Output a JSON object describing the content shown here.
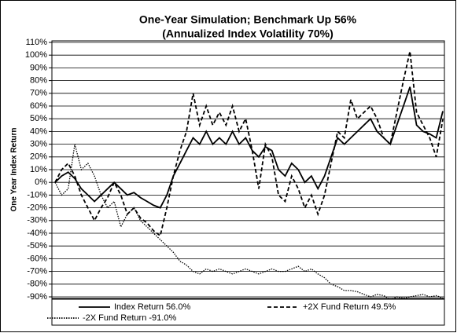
{
  "chart_data": {
    "type": "line",
    "title": [
      "One-Year Simulation; Benchmark Up 56%",
      "(Annualized Index Volatility 70%)"
    ],
    "y_label": "One Year Index Return",
    "ylim": [
      -90,
      110
    ],
    "yticks": [
      {
        "value": -90,
        "label": "-90%"
      },
      {
        "value": -80,
        "label": "-80%"
      },
      {
        "value": -70,
        "label": "-70%"
      },
      {
        "value": -60,
        "label": "-60%"
      },
      {
        "value": -50,
        "label": "-50%"
      },
      {
        "value": -40,
        "label": "-40%"
      },
      {
        "value": -30,
        "label": "-30%"
      },
      {
        "value": -20,
        "label": "-20%"
      },
      {
        "value": -10,
        "label": "-10%"
      },
      {
        "value": 0,
        "label": "0%"
      },
      {
        "value": 10,
        "label": "10%"
      },
      {
        "value": 20,
        "label": "20%"
      },
      {
        "value": 30,
        "label": "30%"
      },
      {
        "value": 40,
        "label": "40%"
      },
      {
        "value": 50,
        "label": "50%"
      },
      {
        "value": 60,
        "label": "60%"
      },
      {
        "value": 70,
        "label": "70%"
      },
      {
        "value": 80,
        "label": "80%"
      },
      {
        "value": 90,
        "label": "90%"
      },
      {
        "value": 100,
        "label": "100%"
      },
      {
        "value": 110,
        "label": "110%"
      }
    ],
    "grid": true,
    "series": [
      {
        "name": "Index Return  56.0%",
        "color": "#000000",
        "dash": "solid",
        "values": [
          0,
          5,
          8,
          3,
          -5,
          -10,
          -15,
          -10,
          -5,
          0,
          -5,
          -10,
          -8,
          -12,
          -15,
          -18,
          -20,
          -10,
          5,
          15,
          25,
          35,
          30,
          40,
          30,
          35,
          30,
          40,
          30,
          35,
          25,
          20,
          28,
          25,
          10,
          5,
          15,
          10,
          0,
          5,
          -5,
          5,
          20,
          35,
          30,
          35,
          40,
          45,
          50,
          40,
          35,
          30,
          45,
          60,
          75,
          45,
          40,
          38,
          35,
          56
        ]
      },
      {
        "name": "+2X Fund Return  49.5%",
        "color": "#000000",
        "dash": "dashed",
        "values": [
          0,
          10,
          15,
          5,
          -10,
          -20,
          -30,
          -20,
          -12,
          0,
          -10,
          -25,
          -20,
          -28,
          -32,
          -38,
          -42,
          -20,
          5,
          25,
          40,
          70,
          45,
          60,
          45,
          55,
          45,
          60,
          40,
          50,
          25,
          -5,
          30,
          20,
          -10,
          -15,
          5,
          -5,
          -20,
          -10,
          -25,
          -10,
          15,
          40,
          35,
          65,
          50,
          55,
          60,
          50,
          35,
          30,
          55,
          80,
          103,
          55,
          45,
          35,
          20,
          49.5
        ]
      },
      {
        "name": "-2X Fund Return  -91.0%",
        "color": "#000000",
        "dash": "dotted",
        "values": [
          0,
          -10,
          -5,
          30,
          10,
          15,
          5,
          -10,
          -20,
          -15,
          -35,
          -25,
          -20,
          -30,
          -35,
          -40,
          -45,
          -50,
          -55,
          -62,
          -65,
          -70,
          -72,
          -68,
          -70,
          -68,
          -70,
          -72,
          -70,
          -68,
          -70,
          -72,
          -70,
          -68,
          -70,
          -70,
          -68,
          -66,
          -70,
          -68,
          -72,
          -75,
          -80,
          -82,
          -85,
          -85,
          -86,
          -88,
          -90,
          -88,
          -89,
          -92,
          -90,
          -91,
          -90,
          -89,
          -88,
          -90,
          -89,
          -91
        ]
      }
    ]
  }
}
